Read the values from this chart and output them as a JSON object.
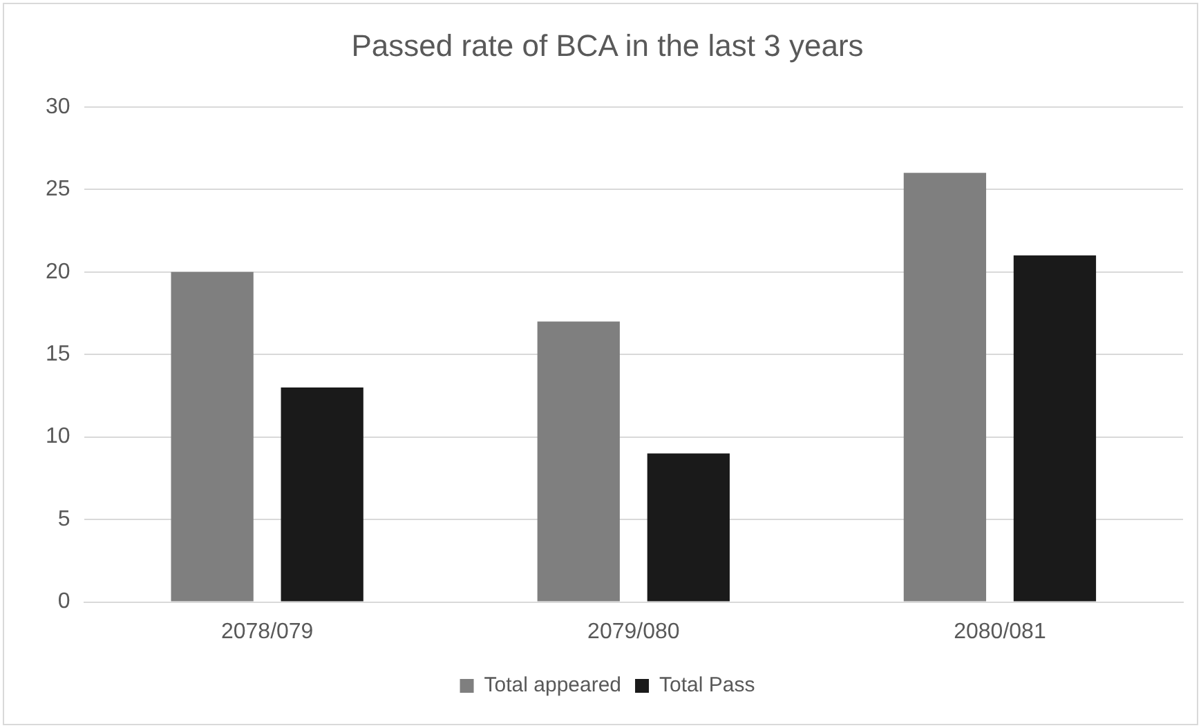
{
  "chart_data": {
    "type": "bar",
    "title": "Passed rate of BCA in the last 3 years",
    "categories": [
      "2078/079",
      "2079/080",
      "2080/081"
    ],
    "series": [
      {
        "name": "Total appeared",
        "color": "#7f7f7f",
        "values": [
          20,
          17,
          26
        ]
      },
      {
        "name": "Total Pass",
        "color": "#1a1a1a",
        "values": [
          13,
          9,
          21
        ]
      }
    ],
    "ylim": [
      0,
      30
    ],
    "yticks": [
      0,
      5,
      10,
      15,
      20,
      25,
      30
    ],
    "grid": "y",
    "legend": "bottom"
  }
}
